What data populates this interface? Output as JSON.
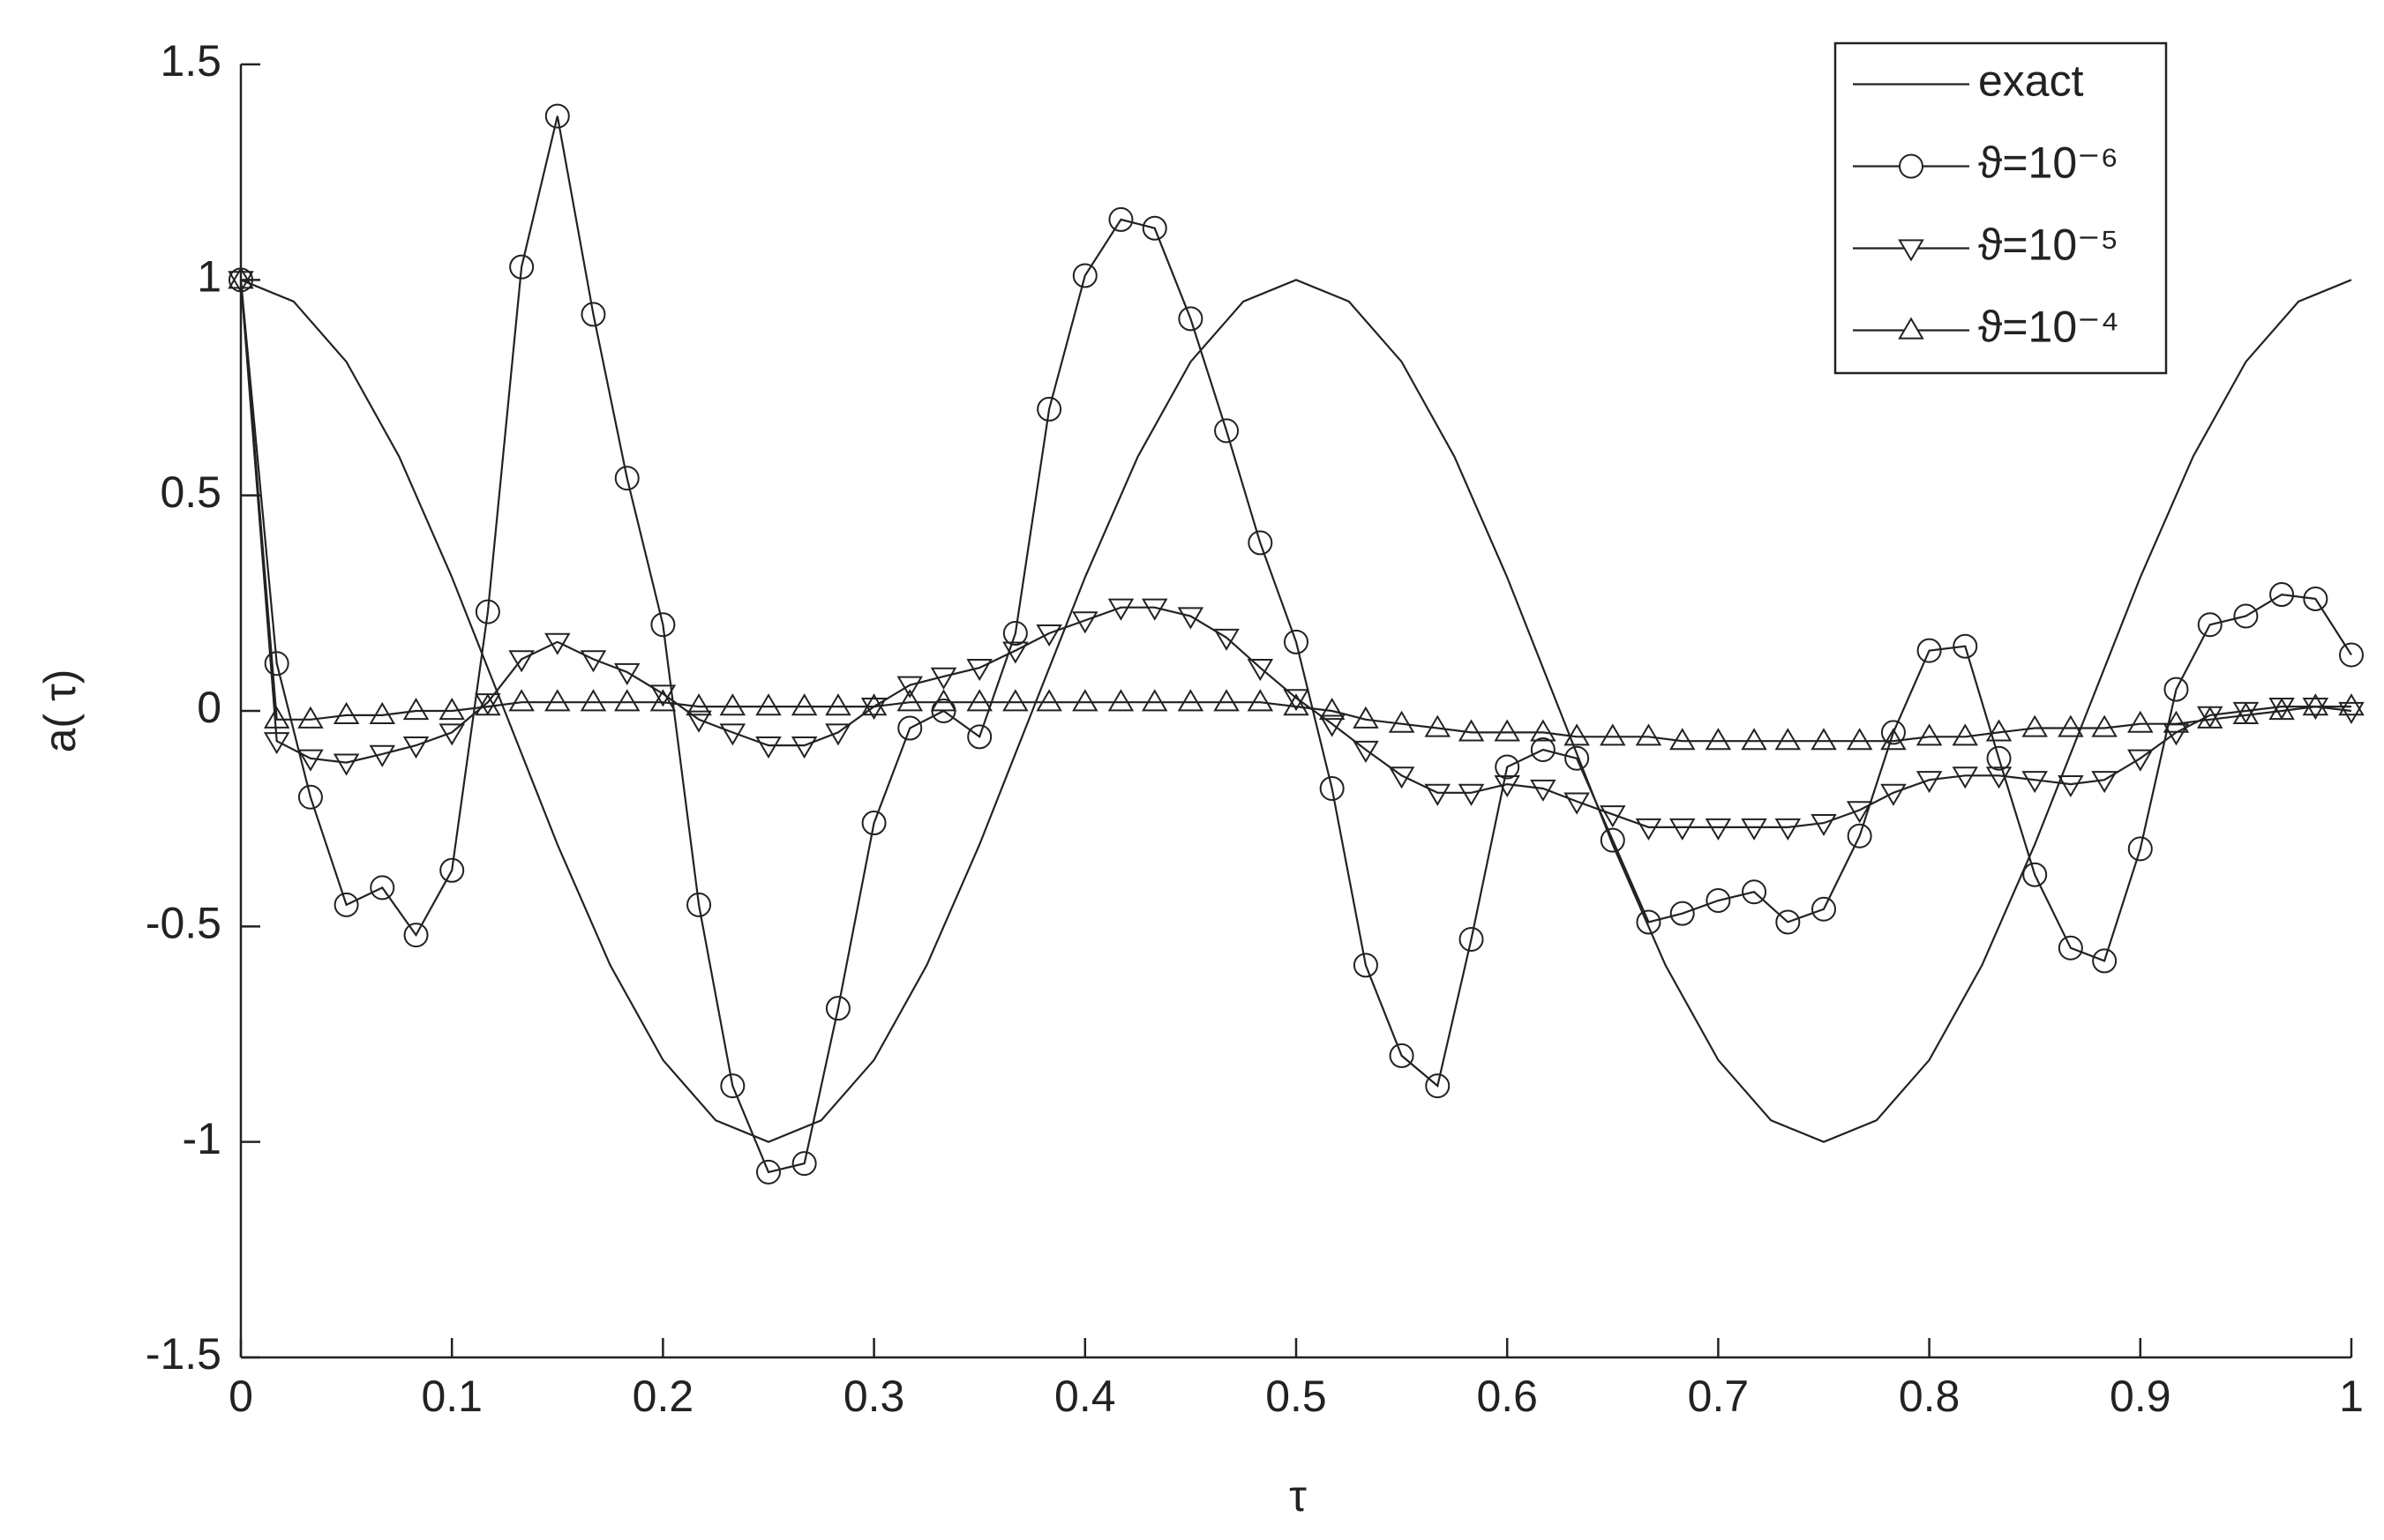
{
  "chart_data": {
    "type": "line",
    "x_label": "τ",
    "y_label": "a( τ)",
    "xlim": [
      0,
      1
    ],
    "ylim": [
      -1.5,
      1.5
    ],
    "xticks": [
      0,
      0.1,
      0.2,
      0.3,
      0.4,
      0.5,
      0.6,
      0.7,
      0.8,
      0.9,
      1
    ],
    "yticks": [
      -1.5,
      -1,
      -0.5,
      0,
      0.5,
      1,
      1.5
    ],
    "legend": "top-right",
    "x": [
      0,
      0.017,
      0.033,
      0.05,
      0.067,
      0.083,
      0.1,
      0.117,
      0.133,
      0.15,
      0.167,
      0.183,
      0.2,
      0.217,
      0.233,
      0.25,
      0.267,
      0.283,
      0.3,
      0.317,
      0.333,
      0.35,
      0.367,
      0.383,
      0.4,
      0.417,
      0.433,
      0.45,
      0.467,
      0.483,
      0.5,
      0.517,
      0.533,
      0.55,
      0.567,
      0.583,
      0.6,
      0.617,
      0.633,
      0.65,
      0.667,
      0.683,
      0.7,
      0.717,
      0.733,
      0.75,
      0.767,
      0.783,
      0.8,
      0.817,
      0.833,
      0.85,
      0.867,
      0.883,
      0.9,
      0.917,
      0.933,
      0.95,
      0.967,
      0.983,
      1
    ],
    "series": [
      {
        "name": "exact",
        "color": "#222222",
        "marker": "none",
        "x": [
          0,
          0.025,
          0.05,
          0.075,
          0.1,
          0.125,
          0.15,
          0.175,
          0.2,
          0.225,
          0.25,
          0.275,
          0.3,
          0.325,
          0.35,
          0.375,
          0.4,
          0.425,
          0.45,
          0.475,
          0.5,
          0.525,
          0.55,
          0.575,
          0.6,
          0.625,
          0.65,
          0.675,
          0.7,
          0.725,
          0.75,
          0.775,
          0.8,
          0.825,
          0.85,
          0.875,
          0.9,
          0.925,
          0.95,
          0.975,
          1
        ],
        "values": [
          1,
          0.95,
          0.81,
          0.59,
          0.31,
          0,
          -0.31,
          -0.59,
          -0.81,
          -0.95,
          -1,
          -0.95,
          -0.81,
          -0.59,
          -0.31,
          0,
          0.31,
          0.59,
          0.81,
          0.95,
          1,
          0.95,
          0.81,
          0.59,
          0.31,
          0,
          -0.31,
          -0.59,
          -0.81,
          -0.95,
          -1,
          -0.95,
          -0.81,
          -0.59,
          -0.31,
          0,
          0.31,
          0.59,
          0.81,
          0.95,
          1
        ]
      },
      {
        "name": "ϑ=10⁻⁶",
        "color": "#222222",
        "marker": "circle",
        "values": [
          1,
          0.11,
          -0.2,
          -0.45,
          -0.41,
          -0.52,
          -0.37,
          0.23,
          1.03,
          1.38,
          0.92,
          0.54,
          0.2,
          -0.45,
          -0.87,
          -1.07,
          -1.05,
          -0.69,
          -0.26,
          -0.04,
          0,
          -0.06,
          0.18,
          0.7,
          1.01,
          1.14,
          1.12,
          0.91,
          0.65,
          0.39,
          0.16,
          -0.18,
          -0.59,
          -0.8,
          -0.87,
          -0.53,
          -0.13,
          -0.09,
          -0.11,
          -0.3,
          -0.49,
          -0.47,
          -0.44,
          -0.42,
          -0.49,
          -0.46,
          -0.29,
          -0.05,
          0.14,
          0.15,
          -0.11,
          -0.38,
          -0.55,
          -0.58,
          -0.32,
          0.05,
          0.2,
          0.22,
          0.27,
          0.26,
          0.13
        ]
      },
      {
        "name": "ϑ=10⁻⁵",
        "color": "#222222",
        "marker": "triangle-down",
        "values": [
          1,
          -0.07,
          -0.11,
          -0.12,
          -0.1,
          -0.08,
          -0.05,
          0.02,
          0.12,
          0.16,
          0.12,
          0.09,
          0.04,
          -0.02,
          -0.05,
          -0.08,
          -0.08,
          -0.05,
          0.01,
          0.06,
          0.08,
          0.1,
          0.14,
          0.18,
          0.21,
          0.24,
          0.24,
          0.22,
          0.17,
          0.1,
          0.03,
          -0.03,
          -0.09,
          -0.15,
          -0.19,
          -0.19,
          -0.17,
          -0.18,
          -0.21,
          -0.24,
          -0.27,
          -0.27,
          -0.27,
          -0.27,
          -0.27,
          -0.26,
          -0.23,
          -0.19,
          -0.16,
          -0.15,
          -0.15,
          -0.16,
          -0.17,
          -0.16,
          -0.11,
          -0.05,
          -0.01,
          0,
          0.01,
          0.01,
          0
        ]
      },
      {
        "name": "ϑ=10⁻⁴",
        "color": "#222222",
        "marker": "triangle-up",
        "values": [
          1,
          -0.02,
          -0.02,
          -0.01,
          -0.01,
          0,
          0,
          0.01,
          0.02,
          0.02,
          0.02,
          0.02,
          0.02,
          0.01,
          0.01,
          0.01,
          0.01,
          0.01,
          0.01,
          0.02,
          0.02,
          0.02,
          0.02,
          0.02,
          0.02,
          0.02,
          0.02,
          0.02,
          0.02,
          0.02,
          0.01,
          0,
          -0.02,
          -0.03,
          -0.04,
          -0.05,
          -0.05,
          -0.05,
          -0.06,
          -0.06,
          -0.06,
          -0.07,
          -0.07,
          -0.07,
          -0.07,
          -0.07,
          -0.07,
          -0.07,
          -0.06,
          -0.06,
          -0.05,
          -0.04,
          -0.04,
          -0.04,
          -0.03,
          -0.03,
          -0.02,
          -0.01,
          0,
          0.01,
          0.01
        ]
      }
    ]
  }
}
